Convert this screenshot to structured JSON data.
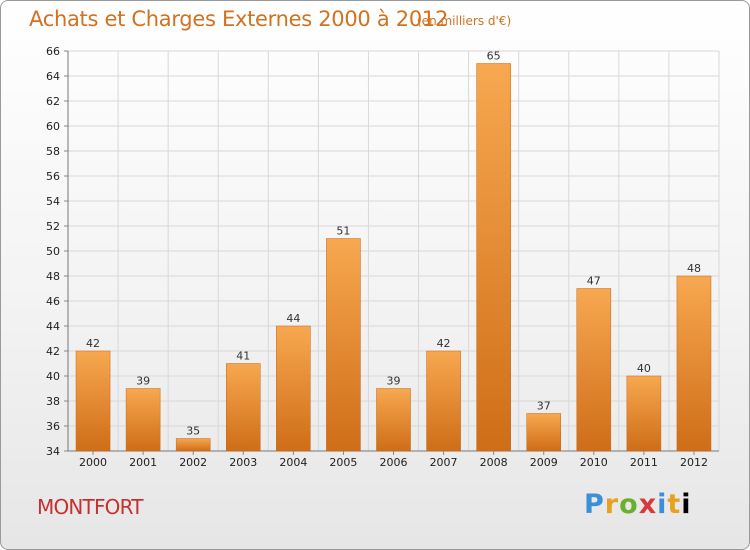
{
  "title": "Achats et Charges Externes 2000 à 2012",
  "subtitle": "(en milliers d'€)",
  "commune": "MONTFORT",
  "logo_text": "Proxiti",
  "colors": {
    "bar_top": "#f7a850",
    "bar_bottom": "#cf6d18",
    "title": "#d2711f",
    "commune": "#c5312f"
  },
  "chart_data": {
    "type": "bar",
    "title": "Achats et Charges Externes 2000 à 2012",
    "subtitle": "(en milliers d'€)",
    "categories": [
      "2000",
      "2001",
      "2002",
      "2003",
      "2004",
      "2005",
      "2006",
      "2007",
      "2008",
      "2009",
      "2010",
      "2011",
      "2012"
    ],
    "values": [
      42,
      39,
      35,
      41,
      44,
      51,
      39,
      42,
      65,
      37,
      47,
      40,
      48
    ],
    "ylim": [
      34,
      66
    ],
    "yticks": [
      34,
      36,
      38,
      40,
      42,
      44,
      46,
      48,
      50,
      52,
      54,
      56,
      58,
      60,
      62,
      64,
      66
    ],
    "grid": true,
    "xlabel": "",
    "ylabel": ""
  }
}
